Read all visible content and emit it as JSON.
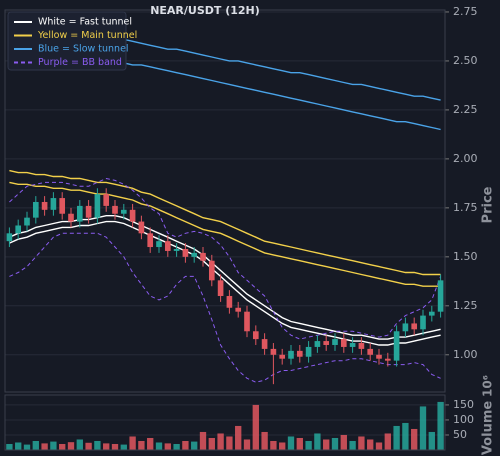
{
  "chart_data": [
    {
      "type": "candlestick",
      "title": "NEAR/USDT (12H)",
      "y_label": "Price",
      "ylim": [
        0.81,
        2.76
      ],
      "yticks": [
        {
          "value": 1,
          "label": "1.00"
        },
        1.25,
        {
          "value": 1.5,
          "label": "1.50"
        },
        1.75,
        {
          "value": 2,
          "label": "2.00"
        },
        2.25,
        {
          "value": 2.5,
          "label": "2.50"
        },
        2.75
      ],
      "grid": true,
      "legend": "upper left",
      "up_color": "#26a69a",
      "down_color": "#e0575f",
      "open": [
        1.58,
        1.62,
        1.66,
        1.7,
        1.78,
        1.74,
        1.8,
        1.72,
        1.68,
        1.76,
        1.7,
        1.82,
        1.76,
        1.72,
        1.74,
        1.68,
        1.62,
        1.55,
        1.58,
        1.53,
        1.54,
        1.5,
        1.52,
        1.48,
        1.38,
        1.3,
        1.24,
        1.22,
        1.12,
        1.08,
        1.03,
        1.0,
        0.98,
        1.02,
        0.99,
        1.04,
        1.07,
        1.05,
        1.08,
        1.04,
        1.06,
        1.03,
        1.0,
        0.98,
        0.97,
        1.12,
        1.16,
        1.13,
        1.2,
        1.22
      ],
      "high": [
        1.65,
        1.69,
        1.73,
        1.81,
        1.81,
        1.83,
        1.83,
        1.75,
        1.79,
        1.79,
        1.85,
        1.85,
        1.79,
        1.77,
        1.77,
        1.71,
        1.65,
        1.61,
        1.61,
        1.57,
        1.57,
        1.55,
        1.55,
        1.51,
        1.41,
        1.33,
        1.27,
        1.25,
        1.15,
        1.11,
        1.06,
        1.03,
        1.05,
        1.05,
        1.07,
        1.1,
        1.1,
        1.11,
        1.11,
        1.09,
        1.09,
        1.06,
        1.03,
        1.01,
        1.15,
        1.19,
        1.19,
        1.23,
        1.25,
        1.41
      ],
      "low": [
        1.55,
        1.59,
        1.63,
        1.67,
        1.71,
        1.71,
        1.69,
        1.65,
        1.65,
        1.67,
        1.67,
        1.73,
        1.69,
        1.69,
        1.65,
        1.59,
        1.52,
        1.52,
        1.5,
        1.5,
        1.47,
        1.47,
        1.45,
        1.35,
        1.27,
        1.21,
        1.19,
        1.09,
        1.05,
        1.0,
        0.85,
        0.95,
        0.95,
        0.96,
        0.96,
        1.01,
        1.02,
        1.02,
        1.01,
        1.01,
        1.0,
        0.97,
        0.95,
        0.94,
        0.94,
        1.09,
        1.1,
        1.1,
        1.17,
        1.19
      ],
      "close": [
        1.62,
        1.66,
        1.7,
        1.78,
        1.74,
        1.8,
        1.72,
        1.68,
        1.76,
        1.7,
        1.82,
        1.76,
        1.72,
        1.74,
        1.68,
        1.62,
        1.55,
        1.58,
        1.53,
        1.54,
        1.5,
        1.52,
        1.48,
        1.38,
        1.3,
        1.24,
        1.22,
        1.12,
        1.08,
        1.03,
        1.0,
        0.98,
        1.02,
        0.99,
        1.04,
        1.07,
        1.05,
        1.08,
        1.04,
        1.06,
        1.03,
        1.0,
        0.98,
        0.97,
        1.12,
        1.16,
        1.13,
        1.2,
        1.22,
        1.38
      ],
      "series": [
        {
          "name": "Blue = Slow tunnel",
          "color": "#4aa3e8",
          "style": "solid",
          "upper": [
            2.72,
            2.71,
            2.7,
            2.69,
            2.69,
            2.68,
            2.67,
            2.66,
            2.65,
            2.64,
            2.63,
            2.63,
            2.62,
            2.61,
            2.6,
            2.59,
            2.58,
            2.57,
            2.56,
            2.56,
            2.55,
            2.54,
            2.53,
            2.52,
            2.51,
            2.5,
            2.5,
            2.49,
            2.48,
            2.47,
            2.46,
            2.45,
            2.44,
            2.44,
            2.43,
            2.42,
            2.41,
            2.4,
            2.39,
            2.38,
            2.38,
            2.37,
            2.36,
            2.35,
            2.34,
            2.33,
            2.32,
            2.32,
            2.31,
            2.3
          ],
          "lower": [
            2.62,
            2.61,
            2.6,
            2.59,
            2.58,
            2.57,
            2.56,
            2.55,
            2.54,
            2.53,
            2.52,
            2.51,
            2.5,
            2.49,
            2.48,
            2.48,
            2.47,
            2.46,
            2.45,
            2.44,
            2.43,
            2.42,
            2.41,
            2.4,
            2.39,
            2.38,
            2.37,
            2.36,
            2.35,
            2.34,
            2.33,
            2.32,
            2.31,
            2.3,
            2.29,
            2.28,
            2.27,
            2.26,
            2.25,
            2.24,
            2.23,
            2.22,
            2.21,
            2.2,
            2.19,
            2.19,
            2.18,
            2.17,
            2.16,
            2.15
          ]
        },
        {
          "name": "Yellow = Main tunnel",
          "color": "#f2d04a",
          "style": "solid",
          "upper": [
            1.94,
            1.93,
            1.93,
            1.92,
            1.92,
            1.91,
            1.91,
            1.9,
            1.9,
            1.89,
            1.88,
            1.88,
            1.87,
            1.86,
            1.85,
            1.83,
            1.82,
            1.8,
            1.78,
            1.76,
            1.74,
            1.72,
            1.7,
            1.69,
            1.68,
            1.66,
            1.64,
            1.62,
            1.6,
            1.58,
            1.57,
            1.56,
            1.55,
            1.54,
            1.53,
            1.52,
            1.51,
            1.5,
            1.49,
            1.48,
            1.47,
            1.46,
            1.45,
            1.44,
            1.43,
            1.42,
            1.42,
            1.41,
            1.41,
            1.41
          ],
          "lower": [
            1.88,
            1.87,
            1.87,
            1.86,
            1.86,
            1.85,
            1.85,
            1.84,
            1.84,
            1.83,
            1.82,
            1.82,
            1.81,
            1.8,
            1.79,
            1.77,
            1.76,
            1.74,
            1.72,
            1.7,
            1.68,
            1.66,
            1.64,
            1.63,
            1.62,
            1.6,
            1.58,
            1.56,
            1.54,
            1.52,
            1.51,
            1.5,
            1.49,
            1.48,
            1.47,
            1.46,
            1.45,
            1.44,
            1.43,
            1.42,
            1.41,
            1.4,
            1.39,
            1.38,
            1.37,
            1.36,
            1.36,
            1.35,
            1.35,
            1.35
          ]
        },
        {
          "name": "White = Fast tunnel",
          "color": "#ffffff",
          "style": "solid",
          "upper": [
            1.6,
            1.62,
            1.63,
            1.65,
            1.66,
            1.67,
            1.68,
            1.68,
            1.69,
            1.69,
            1.7,
            1.71,
            1.71,
            1.7,
            1.68,
            1.66,
            1.64,
            1.62,
            1.6,
            1.58,
            1.56,
            1.54,
            1.51,
            1.47,
            1.43,
            1.39,
            1.35,
            1.31,
            1.28,
            1.25,
            1.22,
            1.19,
            1.17,
            1.16,
            1.15,
            1.14,
            1.13,
            1.12,
            1.11,
            1.1,
            1.1,
            1.09,
            1.08,
            1.08,
            1.09,
            1.09,
            1.1,
            1.11,
            1.12,
            1.13
          ],
          "lower": [
            1.57,
            1.59,
            1.6,
            1.62,
            1.63,
            1.64,
            1.65,
            1.65,
            1.66,
            1.66,
            1.67,
            1.68,
            1.68,
            1.67,
            1.65,
            1.63,
            1.61,
            1.59,
            1.57,
            1.55,
            1.53,
            1.51,
            1.48,
            1.44,
            1.4,
            1.36,
            1.32,
            1.28,
            1.25,
            1.22,
            1.19,
            1.16,
            1.14,
            1.13,
            1.12,
            1.11,
            1.1,
            1.09,
            1.08,
            1.07,
            1.07,
            1.06,
            1.05,
            1.05,
            1.06,
            1.06,
            1.07,
            1.08,
            1.09,
            1.1
          ]
        },
        {
          "name": "Purple = BB band",
          "color": "#8a5cf0",
          "style": "dashed",
          "upper": [
            1.78,
            1.82,
            1.86,
            1.87,
            1.88,
            1.88,
            1.88,
            1.87,
            1.86,
            1.86,
            1.88,
            1.9,
            1.89,
            1.87,
            1.84,
            1.8,
            1.75,
            1.72,
            1.62,
            1.6,
            1.62,
            1.63,
            1.62,
            1.6,
            1.56,
            1.5,
            1.42,
            1.38,
            1.34,
            1.3,
            1.22,
            1.14,
            1.1,
            1.08,
            1.09,
            1.1,
            1.11,
            1.12,
            1.12,
            1.12,
            1.11,
            1.1,
            1.09,
            1.1,
            1.16,
            1.2,
            1.22,
            1.24,
            1.28,
            1.4
          ],
          "lower": [
            1.4,
            1.42,
            1.45,
            1.5,
            1.55,
            1.6,
            1.62,
            1.62,
            1.62,
            1.62,
            1.62,
            1.6,
            1.55,
            1.5,
            1.42,
            1.36,
            1.3,
            1.28,
            1.3,
            1.36,
            1.4,
            1.4,
            1.3,
            1.18,
            1.05,
            0.98,
            0.92,
            0.88,
            0.86,
            0.87,
            0.9,
            0.92,
            0.92,
            0.93,
            0.94,
            0.95,
            0.96,
            0.97,
            0.97,
            0.98,
            0.98,
            0.97,
            0.96,
            0.95,
            0.95,
            0.95,
            0.96,
            0.95,
            0.9,
            0.88
          ]
        }
      ]
    },
    {
      "type": "bar",
      "y_label": "Volume",
      "y_scale_label": "10⁶",
      "ylim": [
        0,
        183
      ],
      "yticks": [
        50,
        100,
        150
      ],
      "grid": true,
      "values": [
        20,
        25,
        18,
        30,
        22,
        28,
        20,
        26,
        35,
        24,
        30,
        22,
        20,
        18,
        45,
        30,
        40,
        25,
        22,
        20,
        30,
        28,
        60,
        40,
        55,
        45,
        80,
        35,
        150,
        60,
        30,
        25,
        45,
        40,
        30,
        55,
        35,
        40,
        50,
        30,
        45,
        35,
        25,
        55,
        80,
        90,
        70,
        145,
        60,
        160
      ]
    }
  ]
}
